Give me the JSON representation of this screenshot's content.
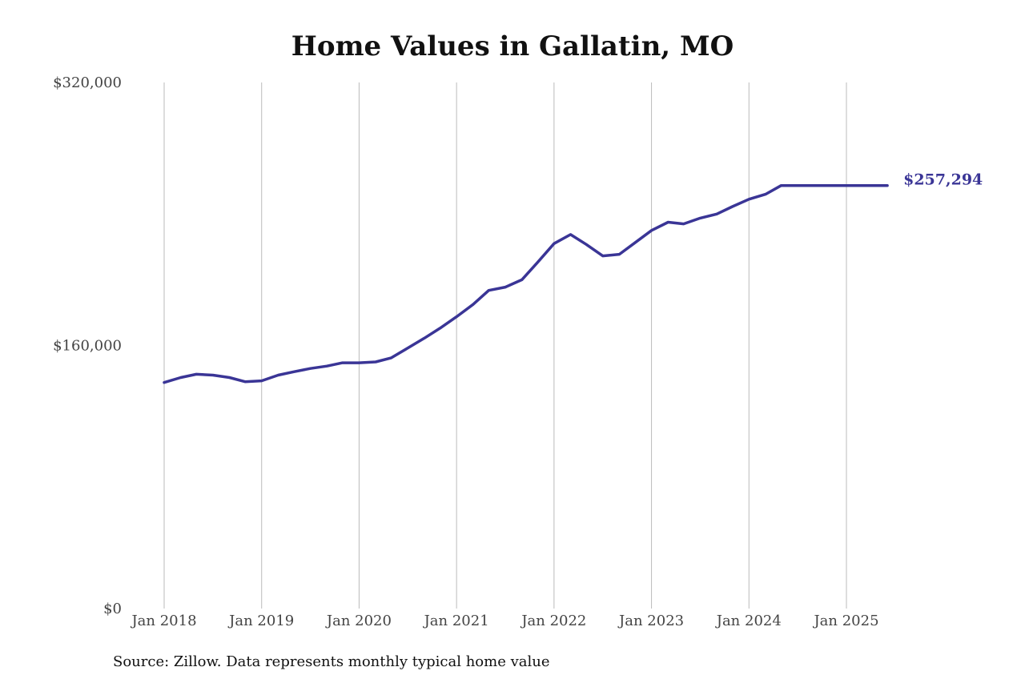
{
  "chart_data": {
    "type": "line",
    "title": "Home Values in Gallatin, MO",
    "source": "Source: Zillow. Data represents monthly typical home value",
    "xlabel": "",
    "ylabel": "",
    "ylim": [
      0,
      320000
    ],
    "yticks": [
      {
        "value": 0,
        "label": "$0"
      },
      {
        "value": 160000,
        "label": "$160,000"
      },
      {
        "value": 320000,
        "label": "$320,000"
      }
    ],
    "xticks": [
      {
        "value": 2018.0,
        "label": "Jan 2018"
      },
      {
        "value": 2019.0,
        "label": "Jan 2019"
      },
      {
        "value": 2020.0,
        "label": "Jan 2020"
      },
      {
        "value": 2021.0,
        "label": "Jan 2021"
      },
      {
        "value": 2022.0,
        "label": "Jan 2022"
      },
      {
        "value": 2023.0,
        "label": "Jan 2023"
      },
      {
        "value": 2024.0,
        "label": "Jan 2024"
      },
      {
        "value": 2025.0,
        "label": "Jan 2025"
      }
    ],
    "xlim": [
      2017.6,
      2025.9
    ],
    "grid": "vertical",
    "line_color": "#3a3596",
    "grid_color": "#bbbbbb",
    "end_label": "$257,294",
    "series": [
      {
        "x": [
          2018.0,
          2018.17,
          2018.33,
          2018.5,
          2018.67,
          2018.83,
          2019.0,
          2019.17,
          2019.33,
          2019.5,
          2019.67,
          2019.83,
          2020.0,
          2020.17,
          2020.33,
          2020.5,
          2020.67,
          2020.83,
          2021.0,
          2021.17,
          2021.33,
          2021.5,
          2021.67,
          2021.83,
          2022.0,
          2022.17,
          2022.33,
          2022.5,
          2022.67,
          2022.83,
          2023.0,
          2023.17,
          2023.33,
          2023.5,
          2023.67,
          2023.83,
          2024.0,
          2024.17,
          2024.33,
          2024.5,
          2024.67,
          2024.83,
          2025.0,
          2025.17,
          2025.33,
          2025.42
        ],
        "y": [
          137500,
          140500,
          142500,
          142000,
          140500,
          138000,
          138500,
          142000,
          144000,
          146000,
          147500,
          149500,
          149500,
          150000,
          152500,
          158500,
          164500,
          170500,
          177500,
          185000,
          193500,
          195500,
          200000,
          210500,
          222000,
          227500,
          221500,
          214500,
          215500,
          222500,
          230000,
          235000,
          234000,
          237500,
          240000,
          244500,
          249000,
          252000,
          257294,
          257294,
          257294,
          257294,
          257294,
          257294,
          257294,
          257294
        ],
        "values_note_unused": ""
      }
    ]
  }
}
